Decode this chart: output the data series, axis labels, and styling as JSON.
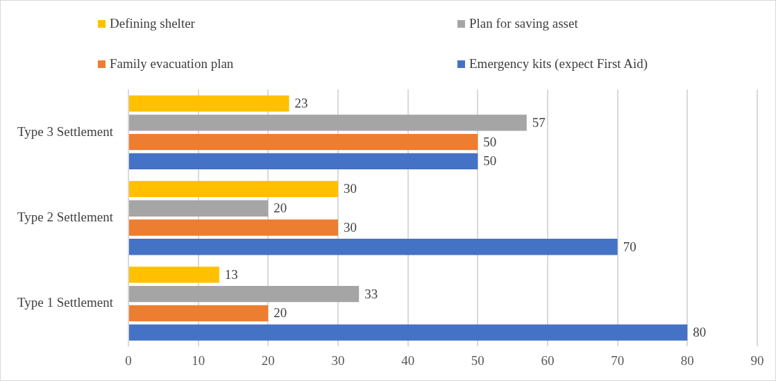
{
  "chart_data": {
    "type": "bar",
    "orientation": "horizontal",
    "categories": [
      "Type 3 Settlement",
      "Type 2 Settlement",
      "Type 1 Settlement"
    ],
    "series": [
      {
        "name": "Defining shelter",
        "color": "#ffc000",
        "values": [
          23,
          30,
          13
        ]
      },
      {
        "name": "Plan for saving asset",
        "color": "#a5a5a5",
        "values": [
          57,
          20,
          33
        ]
      },
      {
        "name": "Family evacuation plan",
        "color": "#ed7d31",
        "values": [
          50,
          30,
          20
        ]
      },
      {
        "name": "Emergency kits (expect First Aid)",
        "color": "#4472c4",
        "values": [
          50,
          70,
          80
        ]
      }
    ],
    "xlim": [
      0,
      90
    ],
    "xticks": [
      0,
      10,
      20,
      30,
      40,
      50,
      60,
      70,
      80,
      90
    ],
    "grid": "x",
    "legend": "top",
    "data_labels": true
  }
}
